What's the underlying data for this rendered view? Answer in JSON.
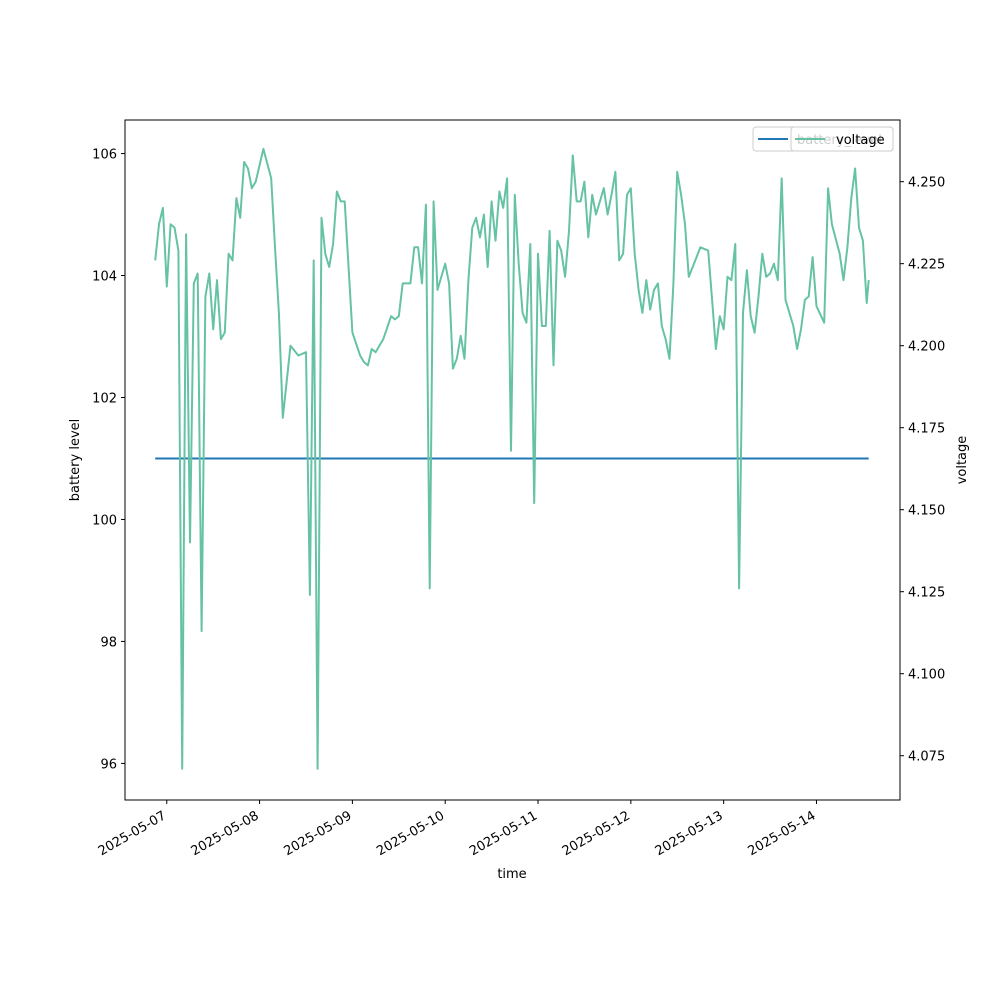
{
  "chart_data": {
    "type": "line",
    "xlabel": "time",
    "ylabel_left": "battery level",
    "ylabel_right": "voltage",
    "x_tick_labels": [
      "2025-05-07",
      "2025-05-08",
      "2025-05-09",
      "2025-05-10",
      "2025-05-11",
      "2025-05-12",
      "2025-05-13",
      "2025-05-14"
    ],
    "x_range": [
      "2025-05-06T13:12",
      "2025-05-14T21:36"
    ],
    "y_left_ticks": [
      96,
      98,
      100,
      102,
      104,
      106
    ],
    "y_left_range": [
      95.4,
      106.55
    ],
    "y_right_ticks": [
      4.075,
      4.1,
      4.125,
      4.15,
      4.175,
      4.2,
      4.225,
      4.25
    ],
    "y_right_range": [
      4.0615,
      4.2688
    ],
    "grid": false,
    "legends": [
      {
        "position": "top-right",
        "entries": [
          {
            "name": "battery_level",
            "color": "#1f77b4"
          }
        ]
      },
      {
        "position": "top-right",
        "entries": [
          {
            "name": "voltage",
            "color": "#66c2a5"
          }
        ]
      }
    ],
    "series": [
      {
        "name": "battery_level",
        "axis": "left",
        "color": "#1f77b4",
        "x": [
          "2025-05-06T21:00",
          "2025-05-14T13:30"
        ],
        "values": [
          101.0,
          101.0
        ]
      },
      {
        "name": "voltage",
        "axis": "right",
        "color": "#66c2a5",
        "x": [
          "2025-05-06T21:00",
          "2025-05-06T22:00",
          "2025-05-06T23:00",
          "2025-05-07T00:00",
          "2025-05-07T01:00",
          "2025-05-07T02:00",
          "2025-05-07T03:00",
          "2025-05-07T04:00",
          "2025-05-07T05:00",
          "2025-05-07T06:00",
          "2025-05-07T07:00",
          "2025-05-07T08:00",
          "2025-05-07T09:00",
          "2025-05-07T10:00",
          "2025-05-07T11:00",
          "2025-05-07T12:00",
          "2025-05-07T13:00",
          "2025-05-07T14:00",
          "2025-05-07T15:00",
          "2025-05-07T16:00",
          "2025-05-07T17:00",
          "2025-05-07T18:00",
          "2025-05-07T19:00",
          "2025-05-07T20:00",
          "2025-05-07T21:00",
          "2025-05-07T22:00",
          "2025-05-07T23:00",
          "2025-05-08T01:00",
          "2025-05-08T03:00",
          "2025-05-08T04:00",
          "2025-05-08T05:00",
          "2025-05-08T06:00",
          "2025-05-08T08:00",
          "2025-05-08T10:00",
          "2025-05-08T12:00",
          "2025-05-08T13:00",
          "2025-05-08T14:00",
          "2025-05-08T15:00",
          "2025-05-08T16:00",
          "2025-05-08T17:00",
          "2025-05-08T18:00",
          "2025-05-08T19:00",
          "2025-05-08T20:00",
          "2025-05-08T21:00",
          "2025-05-08T22:00",
          "2025-05-09T00:00",
          "2025-05-09T02:00",
          "2025-05-09T03:00",
          "2025-05-09T04:00",
          "2025-05-09T05:00",
          "2025-05-09T06:00",
          "2025-05-09T08:00",
          "2025-05-09T10:00",
          "2025-05-09T11:00",
          "2025-05-09T12:00",
          "2025-05-09T13:00",
          "2025-05-09T15:00",
          "2025-05-09T16:00",
          "2025-05-09T17:00",
          "2025-05-09T18:00",
          "2025-05-09T19:00",
          "2025-05-09T20:00",
          "2025-05-09T21:00",
          "2025-05-09T22:00",
          "2025-05-10T00:00",
          "2025-05-10T01:00",
          "2025-05-10T02:00",
          "2025-05-10T03:00",
          "2025-05-10T04:00",
          "2025-05-10T05:00",
          "2025-05-10T06:00",
          "2025-05-10T07:00",
          "2025-05-10T08:00",
          "2025-05-10T09:00",
          "2025-05-10T10:00",
          "2025-05-10T11:00",
          "2025-05-10T12:00",
          "2025-05-10T13:00",
          "2025-05-10T14:00",
          "2025-05-10T15:00",
          "2025-05-10T16:00",
          "2025-05-10T17:00",
          "2025-05-10T18:00",
          "2025-05-10T19:00",
          "2025-05-10T20:00",
          "2025-05-10T21:00",
          "2025-05-10T22:00",
          "2025-05-10T23:00",
          "2025-05-11T00:00",
          "2025-05-11T01:00",
          "2025-05-11T02:00",
          "2025-05-11T03:00",
          "2025-05-11T04:00",
          "2025-05-11T05:00",
          "2025-05-11T06:00",
          "2025-05-11T07:00",
          "2025-05-11T08:00",
          "2025-05-11T09:00",
          "2025-05-11T10:00",
          "2025-05-11T11:00",
          "2025-05-11T12:00",
          "2025-05-11T13:00",
          "2025-05-11T14:00",
          "2025-05-11T15:00",
          "2025-05-11T16:00",
          "2025-05-11T17:00",
          "2025-05-11T18:00",
          "2025-05-11T19:00",
          "2025-05-11T20:00",
          "2025-05-11T21:00",
          "2025-05-11T22:00",
          "2025-05-11T23:00",
          "2025-05-12T00:00",
          "2025-05-12T01:00",
          "2025-05-12T02:00",
          "2025-05-12T03:00",
          "2025-05-12T04:00",
          "2025-05-12T05:00",
          "2025-05-12T06:00",
          "2025-05-12T07:00",
          "2025-05-12T08:00",
          "2025-05-12T09:00",
          "2025-05-12T10:00",
          "2025-05-12T11:00",
          "2025-05-12T12:00",
          "2025-05-12T13:00",
          "2025-05-12T14:00",
          "2025-05-12T15:00",
          "2025-05-12T16:00",
          "2025-05-12T18:00",
          "2025-05-12T20:00",
          "2025-05-12T21:00",
          "2025-05-12T22:00",
          "2025-05-12T23:00",
          "2025-05-13T00:00",
          "2025-05-13T01:00",
          "2025-05-13T02:00",
          "2025-05-13T03:00",
          "2025-05-13T04:00",
          "2025-05-13T05:00",
          "2025-05-13T06:00",
          "2025-05-13T07:00",
          "2025-05-13T08:00",
          "2025-05-13T09:00",
          "2025-05-13T10:00",
          "2025-05-13T11:00",
          "2025-05-13T12:00",
          "2025-05-13T13:00",
          "2025-05-13T14:00",
          "2025-05-13T15:00",
          "2025-05-13T16:00",
          "2025-05-13T18:00",
          "2025-05-13T19:00",
          "2025-05-13T20:00",
          "2025-05-13T21:00",
          "2025-05-13T22:00",
          "2025-05-13T23:00",
          "2025-05-14T00:00",
          "2025-05-14T02:00",
          "2025-05-14T03:00",
          "2025-05-14T04:00",
          "2025-05-14T06:00",
          "2025-05-14T07:00",
          "2025-05-14T08:00",
          "2025-05-14T09:00",
          "2025-05-14T10:00",
          "2025-05-14T11:00",
          "2025-05-14T12:00",
          "2025-05-14T13:00",
          "2025-05-14T13:30"
        ],
        "values": [
          4.226,
          4.237,
          4.242,
          4.218,
          4.237,
          4.236,
          4.229,
          4.071,
          4.234,
          4.14,
          4.219,
          4.222,
          4.113,
          4.215,
          4.222,
          4.205,
          4.22,
          4.202,
          4.204,
          4.228,
          4.226,
          4.245,
          4.239,
          4.256,
          4.254,
          4.248,
          4.25,
          4.26,
          4.251,
          4.23,
          4.21,
          4.178,
          4.2,
          4.197,
          4.198,
          4.124,
          4.226,
          4.071,
          4.239,
          4.228,
          4.224,
          4.231,
          4.247,
          4.244,
          4.244,
          4.204,
          4.197,
          4.195,
          4.194,
          4.199,
          4.198,
          4.202,
          4.209,
          4.208,
          4.209,
          4.219,
          4.219,
          4.23,
          4.23,
          4.219,
          4.243,
          4.126,
          4.244,
          4.217,
          4.225,
          4.219,
          4.193,
          4.196,
          4.203,
          4.196,
          4.22,
          4.236,
          4.239,
          4.233,
          4.24,
          4.224,
          4.244,
          4.232,
          4.247,
          4.242,
          4.251,
          4.168,
          4.246,
          4.225,
          4.21,
          4.207,
          4.231,
          4.152,
          4.228,
          4.206,
          4.206,
          4.235,
          4.194,
          4.232,
          4.229,
          4.221,
          4.235,
          4.258,
          4.244,
          4.244,
          4.25,
          4.233,
          4.246,
          4.24,
          4.244,
          4.248,
          4.24,
          4.246,
          4.253,
          4.226,
          4.228,
          4.246,
          4.248,
          4.228,
          4.217,
          4.21,
          4.22,
          4.211,
          4.217,
          4.219,
          4.206,
          4.202,
          4.196,
          4.219,
          4.253,
          4.246,
          4.237,
          4.221,
          4.224,
          4.23,
          4.229,
          4.214,
          4.199,
          4.209,
          4.205,
          4.221,
          4.22,
          4.231,
          4.126,
          4.21,
          4.223,
          4.209,
          4.204,
          4.215,
          4.228,
          4.221,
          4.222,
          4.225,
          4.22,
          4.251,
          4.214,
          4.206,
          4.199,
          4.205,
          4.214,
          4.215,
          4.227,
          4.212,
          4.207,
          4.248,
          4.237,
          4.228,
          4.22,
          4.23,
          4.245,
          4.254,
          4.236,
          4.232,
          4.213,
          4.22
        ]
      }
    ]
  }
}
